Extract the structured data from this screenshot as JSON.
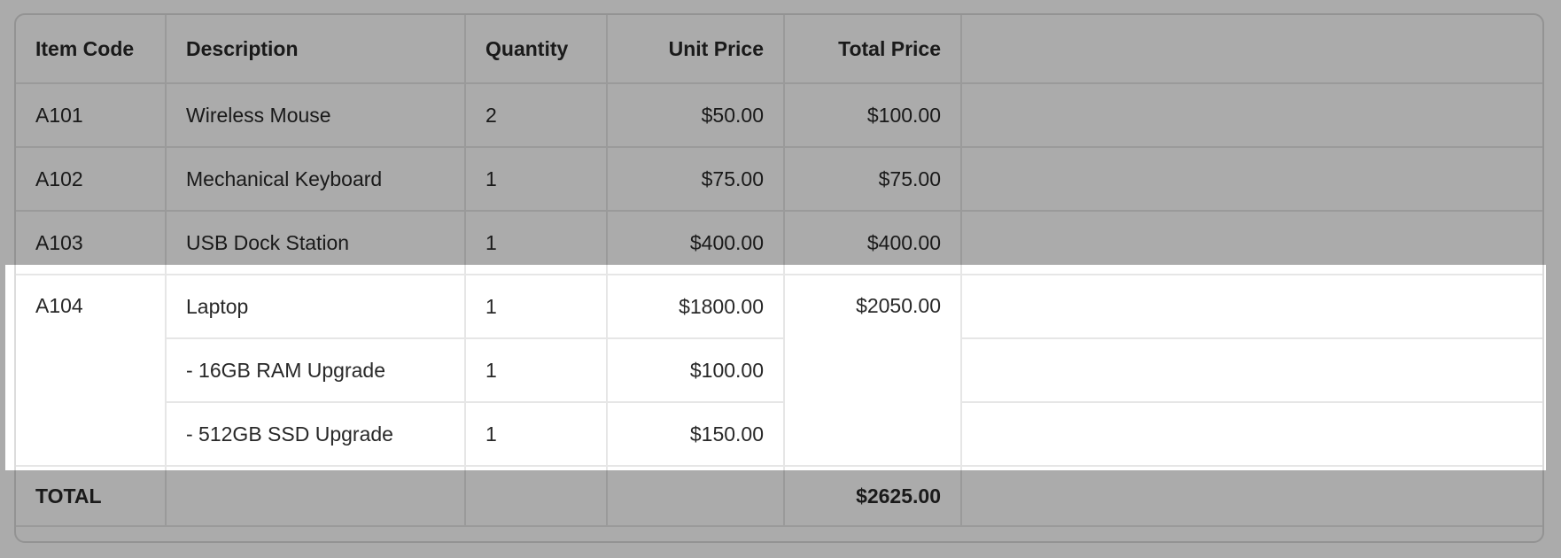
{
  "colors": {
    "background": "#ffffff",
    "outer_border": "#dcdcdc",
    "cell_border": "#e6e6e6",
    "text": "#282828",
    "dim_overlay": "rgba(0,0,0,0.33)"
  },
  "table": {
    "headers": [
      "Item Code",
      "Description",
      "Quantity",
      "Unit Price",
      "Total Price",
      ""
    ],
    "rows": [
      {
        "item_code": "A101",
        "description": "Wireless Mouse",
        "quantity": "2",
        "unit_price": "$50.00",
        "total_price": "$100.00",
        "extra": ""
      },
      {
        "item_code": "A102",
        "description": "Mechanical Keyboard",
        "quantity": "1",
        "unit_price": "$75.00",
        "total_price": "$75.00",
        "extra": ""
      },
      {
        "item_code": "A103",
        "description": "USB Dock Station",
        "quantity": "1",
        "unit_price": "$400.00",
        "total_price": "$400.00",
        "extra": ""
      }
    ],
    "group": {
      "item_code": "A104",
      "total_price": "$2050.00",
      "lines": [
        {
          "description": "Laptop",
          "quantity": "1",
          "unit_price": "$1800.00",
          "extra": ""
        },
        {
          "description": "- 16GB RAM Upgrade",
          "quantity": "1",
          "unit_price": "$100.00",
          "extra": ""
        },
        {
          "description": "- 512GB SSD Upgrade",
          "quantity": "1",
          "unit_price": "$150.00",
          "extra": ""
        }
      ]
    },
    "footer": {
      "label": "TOTAL",
      "description": "",
      "quantity": "",
      "unit_price": "",
      "total_price": "$2625.00",
      "extra": ""
    }
  }
}
